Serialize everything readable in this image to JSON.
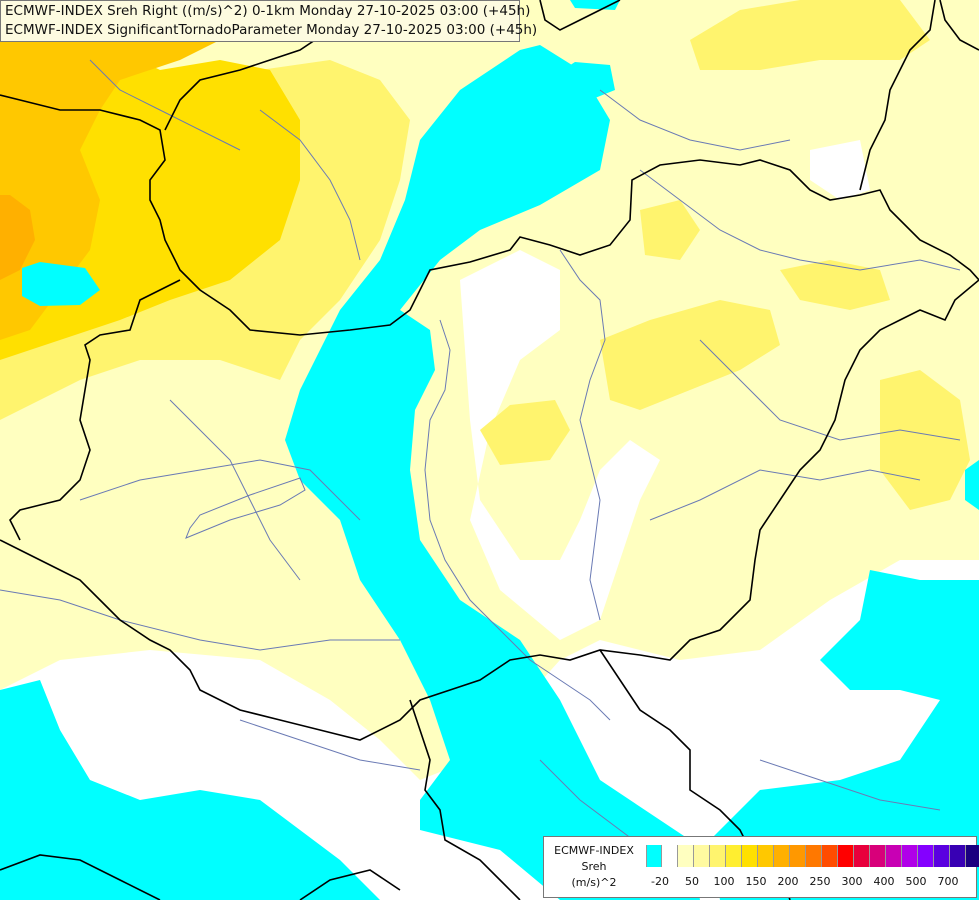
{
  "title": {
    "line1": "ECMWF-INDEX Sreh Right ((m/s)^2) 0-1km Monday 27-10-2025 03:00 (+45h)",
    "line2": "ECMWF-INDEX SignificantTornadoParameter Monday 27-10-2025 03:00 (+45h)"
  },
  "legend": {
    "source": "ECMWF-INDEX",
    "param": "Sreh",
    "unit": "(m/s)^2",
    "colors": [
      "#00ffff",
      "#ffffff",
      "#ffffc0",
      "#fffaa0",
      "#fff46e",
      "#ffee30",
      "#ffe000",
      "#ffc800",
      "#ffb000",
      "#ff9800",
      "#ff7800",
      "#ff4c00",
      "#ff0000",
      "#e8003c",
      "#d8007a",
      "#c800b4",
      "#b000e8",
      "#8400ff",
      "#5a00e0",
      "#3800b4",
      "#1a0080"
    ],
    "ticks": [
      "-20",
      "50",
      "100",
      "150",
      "200",
      "250",
      "300",
      "400",
      "500",
      "700"
    ]
  },
  "palette": {
    "cyan": "#00ffff",
    "white": "#ffffff",
    "pale_yellow": "#ffffc0",
    "light_yellow": "#fffaa0",
    "yellow": "#fff46e",
    "gold": "#ffee30",
    "deep_yellow": "#ffe000",
    "orange_yellow": "#ffc800",
    "orange": "#ffb000",
    "border": "#000000",
    "river": "#6a7ab4"
  }
}
